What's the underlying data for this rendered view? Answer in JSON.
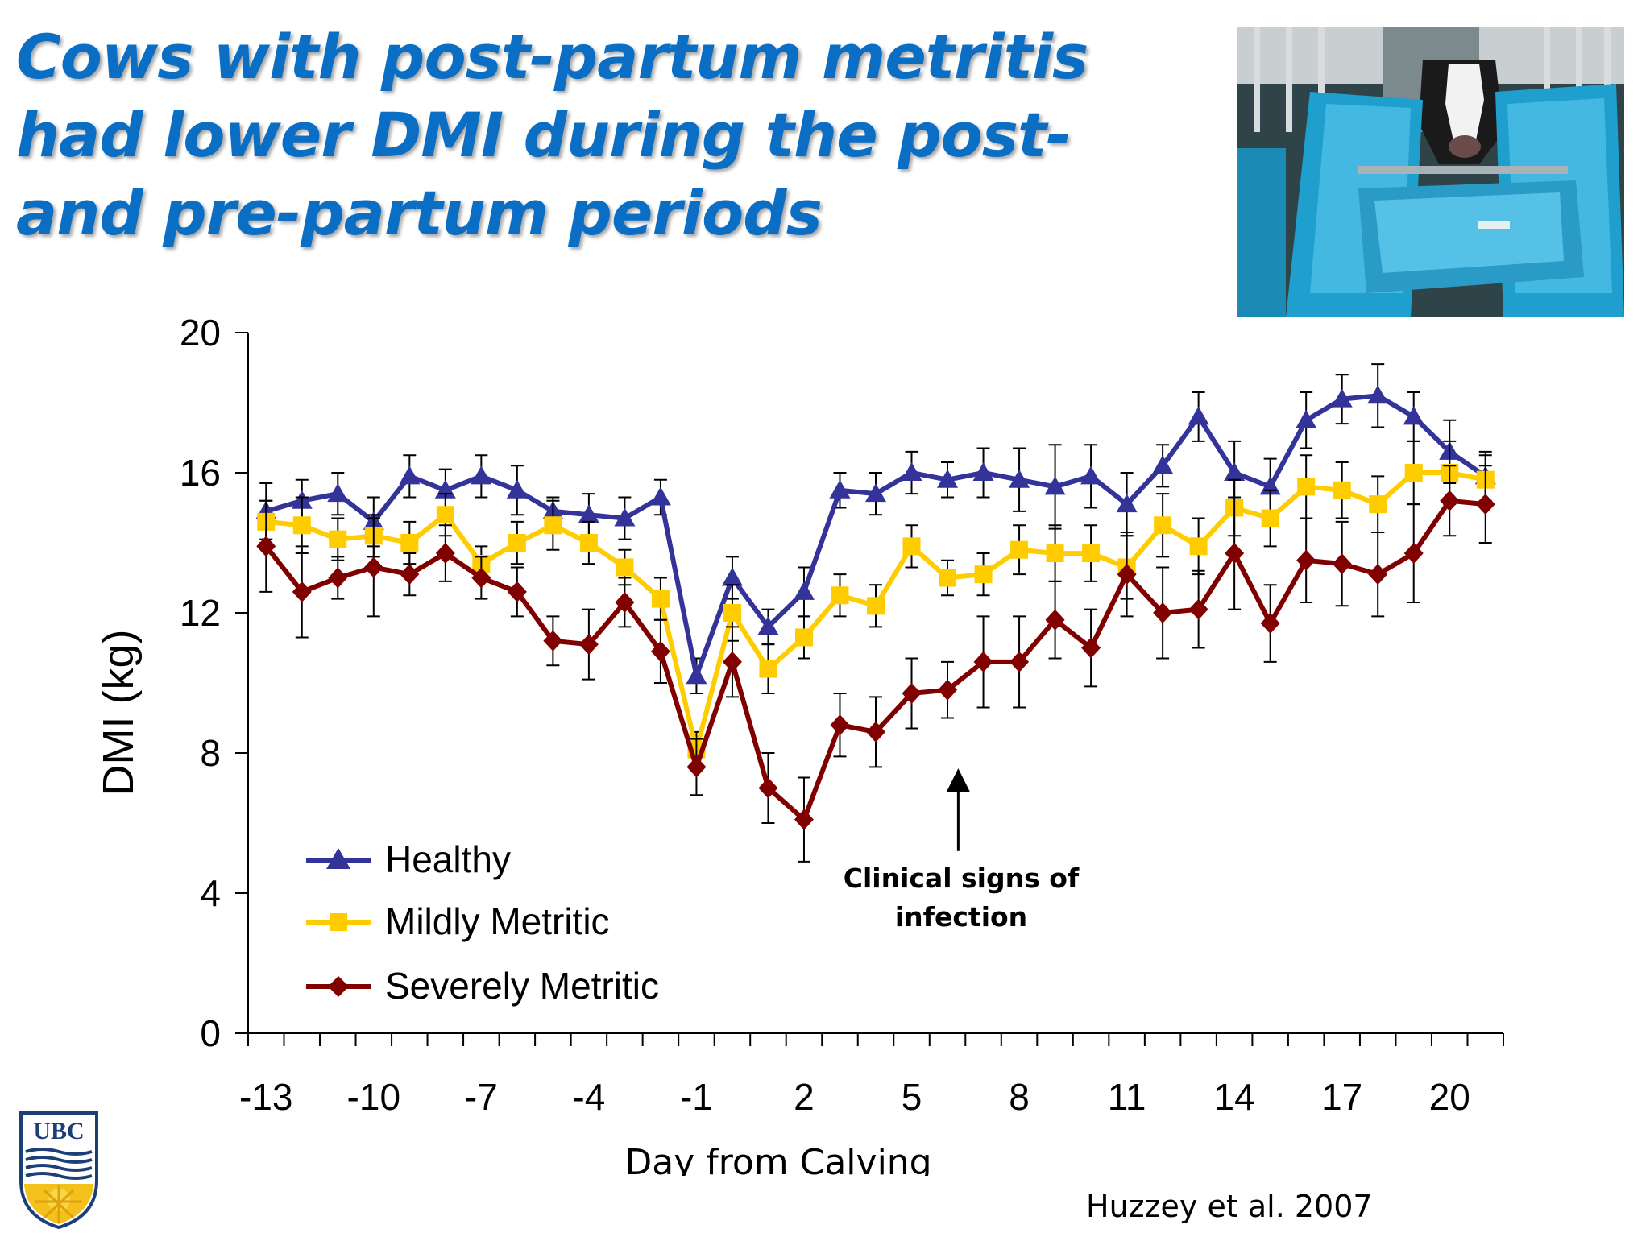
{
  "slide": {
    "title": "Cows with post-partum metritis had lower DMI during the post- and pre-partum periods",
    "citation": "Huzzey et al. 2007",
    "logo_text": "UBC"
  },
  "colors": {
    "title": "#0a6fc4",
    "healthy": "#333399",
    "mildly_metritic": "#ffcc00",
    "severely_metritic": "#800000"
  },
  "photo": {
    "icon": "cow-at-feeder-photo"
  },
  "chart_data": {
    "type": "line",
    "xlabel": "Day from Calving",
    "ylabel": "DMI (kg)",
    "ylim": [
      0,
      20
    ],
    "xlim": [
      -13.5,
      21.5
    ],
    "yticks": [
      0,
      4,
      8,
      12,
      16,
      20
    ],
    "xtick_labels": [
      -13,
      -10,
      -7,
      -4,
      -1,
      2,
      5,
      8,
      11,
      14,
      17,
      20
    ],
    "grid": false,
    "legend_position": "bottom-left",
    "x": [
      -13,
      -12,
      -11,
      -10,
      -9,
      -8,
      -7,
      -6,
      -5,
      -4,
      -3,
      -2,
      -1,
      0,
      1,
      2,
      3,
      4,
      5,
      6,
      7,
      8,
      9,
      10,
      11,
      12,
      13,
      14,
      15,
      16,
      17,
      18,
      19,
      20,
      21
    ],
    "series": [
      {
        "name": "Healthy",
        "marker": "triangle",
        "values": [
          14.9,
          15.2,
          15.4,
          14.6,
          15.9,
          15.5,
          15.9,
          15.5,
          14.9,
          14.8,
          14.7,
          15.3,
          10.2,
          13.0,
          11.6,
          12.6,
          15.5,
          15.4,
          16.0,
          15.8,
          16.0,
          15.8,
          15.6,
          15.9,
          15.1,
          16.2,
          17.6,
          16.0,
          15.6,
          17.5,
          18.1,
          18.2,
          17.6,
          16.6,
          15.9
        ],
        "errors": [
          0.8,
          0.6,
          0.6,
          0.7,
          0.6,
          0.6,
          0.6,
          0.7,
          0.4,
          0.6,
          0.6,
          0.5,
          0.5,
          0.6,
          0.5,
          0.7,
          0.5,
          0.6,
          0.6,
          0.5,
          0.7,
          0.9,
          1.2,
          0.9,
          0.9,
          0.6,
          0.7,
          0.9,
          0.8,
          0.8,
          0.7,
          0.9,
          0.7,
          0.9,
          0.7
        ]
      },
      {
        "name": "Mildly Metritic",
        "marker": "square",
        "values": [
          14.6,
          14.5,
          14.1,
          14.2,
          14.0,
          14.8,
          13.4,
          14.0,
          14.5,
          14.0,
          13.3,
          12.4,
          8.1,
          12.0,
          10.4,
          11.3,
          12.5,
          12.2,
          13.9,
          13.0,
          13.1,
          13.8,
          13.7,
          13.7,
          13.3,
          14.5,
          13.9,
          15.0,
          14.7,
          15.6,
          15.5,
          15.1,
          16.0,
          16.0,
          15.8
        ],
        "errors": [
          0.6,
          0.8,
          0.6,
          0.6,
          0.6,
          0.6,
          0.5,
          0.6,
          0.7,
          0.6,
          0.5,
          0.6,
          0.5,
          0.8,
          0.7,
          0.6,
          0.6,
          0.6,
          0.6,
          0.5,
          0.6,
          0.7,
          0.8,
          0.8,
          0.9,
          0.9,
          0.8,
          0.8,
          0.8,
          0.9,
          0.8,
          0.8,
          0.9,
          0.9,
          0.7
        ]
      },
      {
        "name": "Severely Metritic",
        "marker": "diamond",
        "values": [
          13.9,
          12.6,
          13.0,
          13.3,
          13.1,
          13.7,
          13.0,
          12.6,
          11.2,
          11.1,
          12.3,
          10.9,
          7.6,
          10.6,
          7.0,
          6.1,
          8.8,
          8.6,
          9.7,
          9.8,
          10.6,
          10.6,
          11.8,
          11.0,
          13.1,
          12.0,
          12.1,
          13.7,
          11.7,
          13.5,
          13.4,
          13.1,
          13.7,
          15.2,
          15.1
        ],
        "errors": [
          1.3,
          1.3,
          0.6,
          1.4,
          0.6,
          0.8,
          0.6,
          0.7,
          0.7,
          1.0,
          0.7,
          0.9,
          0.8,
          1.0,
          1.0,
          1.2,
          0.9,
          1.0,
          1.0,
          0.8,
          1.3,
          1.3,
          1.1,
          1.1,
          1.2,
          1.3,
          1.1,
          1.6,
          1.1,
          1.2,
          1.2,
          1.2,
          1.4,
          1.0,
          1.1
        ]
      }
    ],
    "annotations": [
      {
        "text": "Clinical signs of infection",
        "x": 6.3,
        "arrow_to_y": 7.4,
        "arrow_from_y": 5.2
      }
    ]
  }
}
